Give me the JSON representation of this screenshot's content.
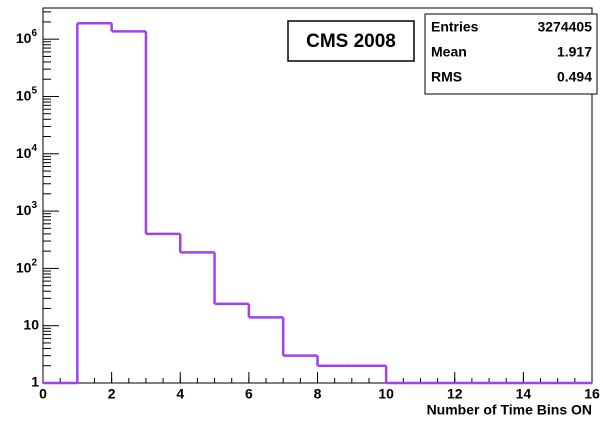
{
  "chart_data": {
    "type": "histogram",
    "bins": [
      0,
      1,
      2,
      3,
      4,
      5,
      6,
      7,
      8,
      9,
      10,
      11,
      12,
      13,
      14,
      15,
      16
    ],
    "counts": [
      0,
      1900000,
      1370000,
      400,
      190,
      24,
      14,
      3,
      2,
      2,
      0,
      0,
      0,
      0,
      0,
      0
    ],
    "color": "#a040f0",
    "log_y": true,
    "xlim": [
      0,
      16
    ],
    "xticks": [
      0,
      2,
      4,
      6,
      8,
      10,
      12,
      14,
      16
    ],
    "ylim": [
      1,
      3500000
    ],
    "yticks": [
      1,
      10,
      {
        "value": 100,
        "label": "10",
        "sup": "2"
      },
      {
        "value": 1000,
        "label": "10",
        "sup": "3"
      },
      {
        "value": 10000,
        "label": "10",
        "sup": "4"
      },
      {
        "value": 100000,
        "label": "10",
        "sup": "5"
      },
      {
        "value": 1000000,
        "label": "10",
        "sup": "6"
      }
    ],
    "xlabel": "Number of Time Bins ON",
    "annotation": "CMS 2008",
    "stats": [
      {
        "name": "Entries",
        "value": 3274405
      },
      {
        "name": "Mean",
        "value": 1.917
      },
      {
        "name": "RMS",
        "value": 0.494
      }
    ]
  }
}
